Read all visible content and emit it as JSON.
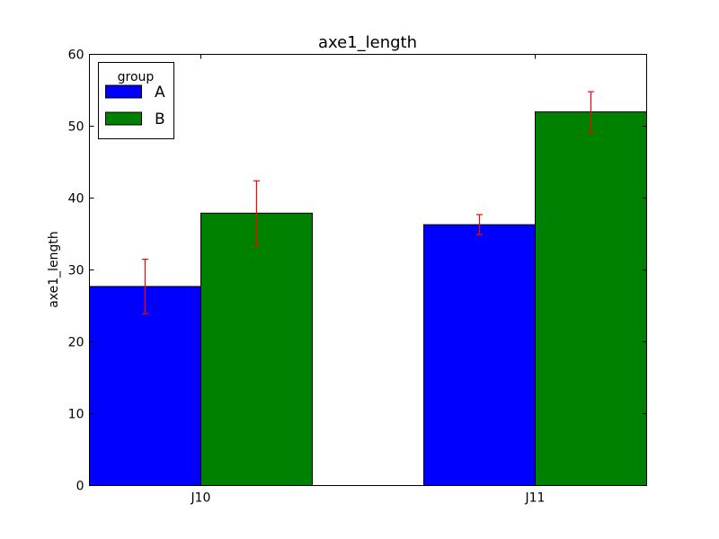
{
  "chart_data": {
    "type": "bar",
    "title": "axe1_length",
    "xlabel": "",
    "ylabel": "axe1_length",
    "categories": [
      "J10",
      "J11"
    ],
    "series": [
      {
        "name": "A",
        "color": "#0000ff",
        "values": [
          27.7,
          36.3
        ],
        "errors": [
          3.8,
          1.4
        ]
      },
      {
        "name": "B",
        "color": "#008000",
        "values": [
          37.9,
          52.0
        ],
        "errors": [
          4.5,
          2.8
        ]
      }
    ],
    "ylim": [
      0,
      60
    ],
    "yticks": [
      0,
      10,
      20,
      30,
      40,
      50,
      60
    ],
    "grid": false,
    "legend": {
      "title": "group",
      "placement": "top-left"
    },
    "error_bar_color": "#ff0000"
  }
}
